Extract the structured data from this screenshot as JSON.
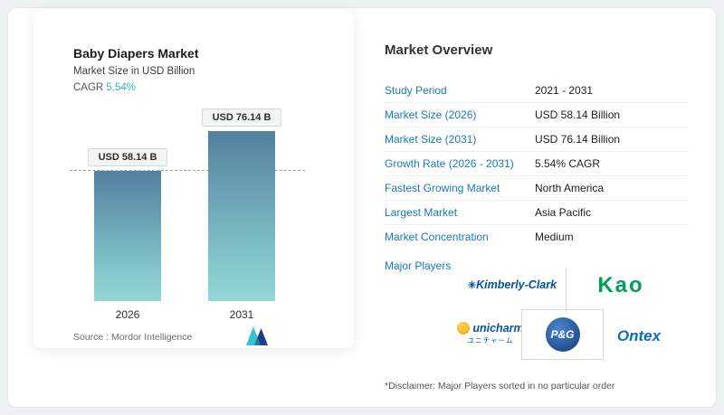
{
  "chart_panel": {
    "title": "Baby Diapers Market",
    "subtitle": "Market Size in USD Billion",
    "cagr_label": "CAGR ",
    "cagr_value": "5.54%",
    "source_text": "Source :  Mordor Intelligence"
  },
  "chart_data": {
    "type": "bar",
    "title": "Baby Diapers Market",
    "subtitle": "Market Size in USD Billion",
    "categories": [
      "2026",
      "2031"
    ],
    "values": [
      58.14,
      76.14
    ],
    "bar_labels": [
      "USD 58.14 B",
      "USD 76.14 B"
    ],
    "unit": "USD Billion",
    "cagr": "5.54%",
    "reference_line": 58.14,
    "bar_color_top": "#54809f",
    "bar_color_bottom": "#95d7d5",
    "grid": false,
    "legend": "none"
  },
  "overview": {
    "title": "Market Overview",
    "rows": [
      {
        "label": "Study Period",
        "value": "2021 - 2031"
      },
      {
        "label": "Market Size (2026)",
        "value": "USD 58.14 Billion"
      },
      {
        "label": "Market Size (2031)",
        "value": "USD 76.14 Billion"
      },
      {
        "label": "Growth Rate (2026 - 2031)",
        "value": "5.54% CAGR"
      },
      {
        "label": "Fastest Growing Market",
        "value": "North America"
      },
      {
        "label": "Largest Market",
        "value": "Asia Pacific"
      },
      {
        "label": "Market Concentration",
        "value": "Medium"
      }
    ],
    "major_players_label": "Major Players",
    "players": {
      "kimberly_clark_mark": "✳",
      "kimberly_clark": "Kimberly-Clark",
      "kao": "Kao",
      "unicharm": "unicharm",
      "unicharm_jp": "ユニチャーム",
      "pg": "P&G",
      "ontex": "Ontex"
    },
    "disclaimer": "*Disclaimer: Major Players sorted in no particular order"
  },
  "colors": {
    "label_blue": "#1b78bd",
    "cagr_teal": "#2bb3c0",
    "logo_teal": "#35c4d7",
    "logo_navy": "#1d3c8c"
  }
}
